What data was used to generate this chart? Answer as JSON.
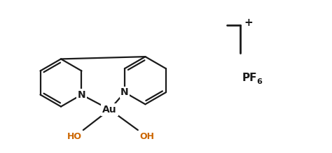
{
  "bg_color": "#ffffff",
  "line_color": "#1a1a1a",
  "text_color": "#1a1a1a",
  "blue_text": "#cc6600",
  "n_color": "#1a1a1a",
  "line_width": 1.6,
  "au_label": "Au",
  "n_label": "N",
  "ho_left_label": "HO",
  "ho_right_label": "OH",
  "pf6_main": "PF",
  "pf6_sub": "6",
  "plus_label": "+",
  "fig_width": 4.74,
  "fig_height": 2.19,
  "dpi": 100
}
